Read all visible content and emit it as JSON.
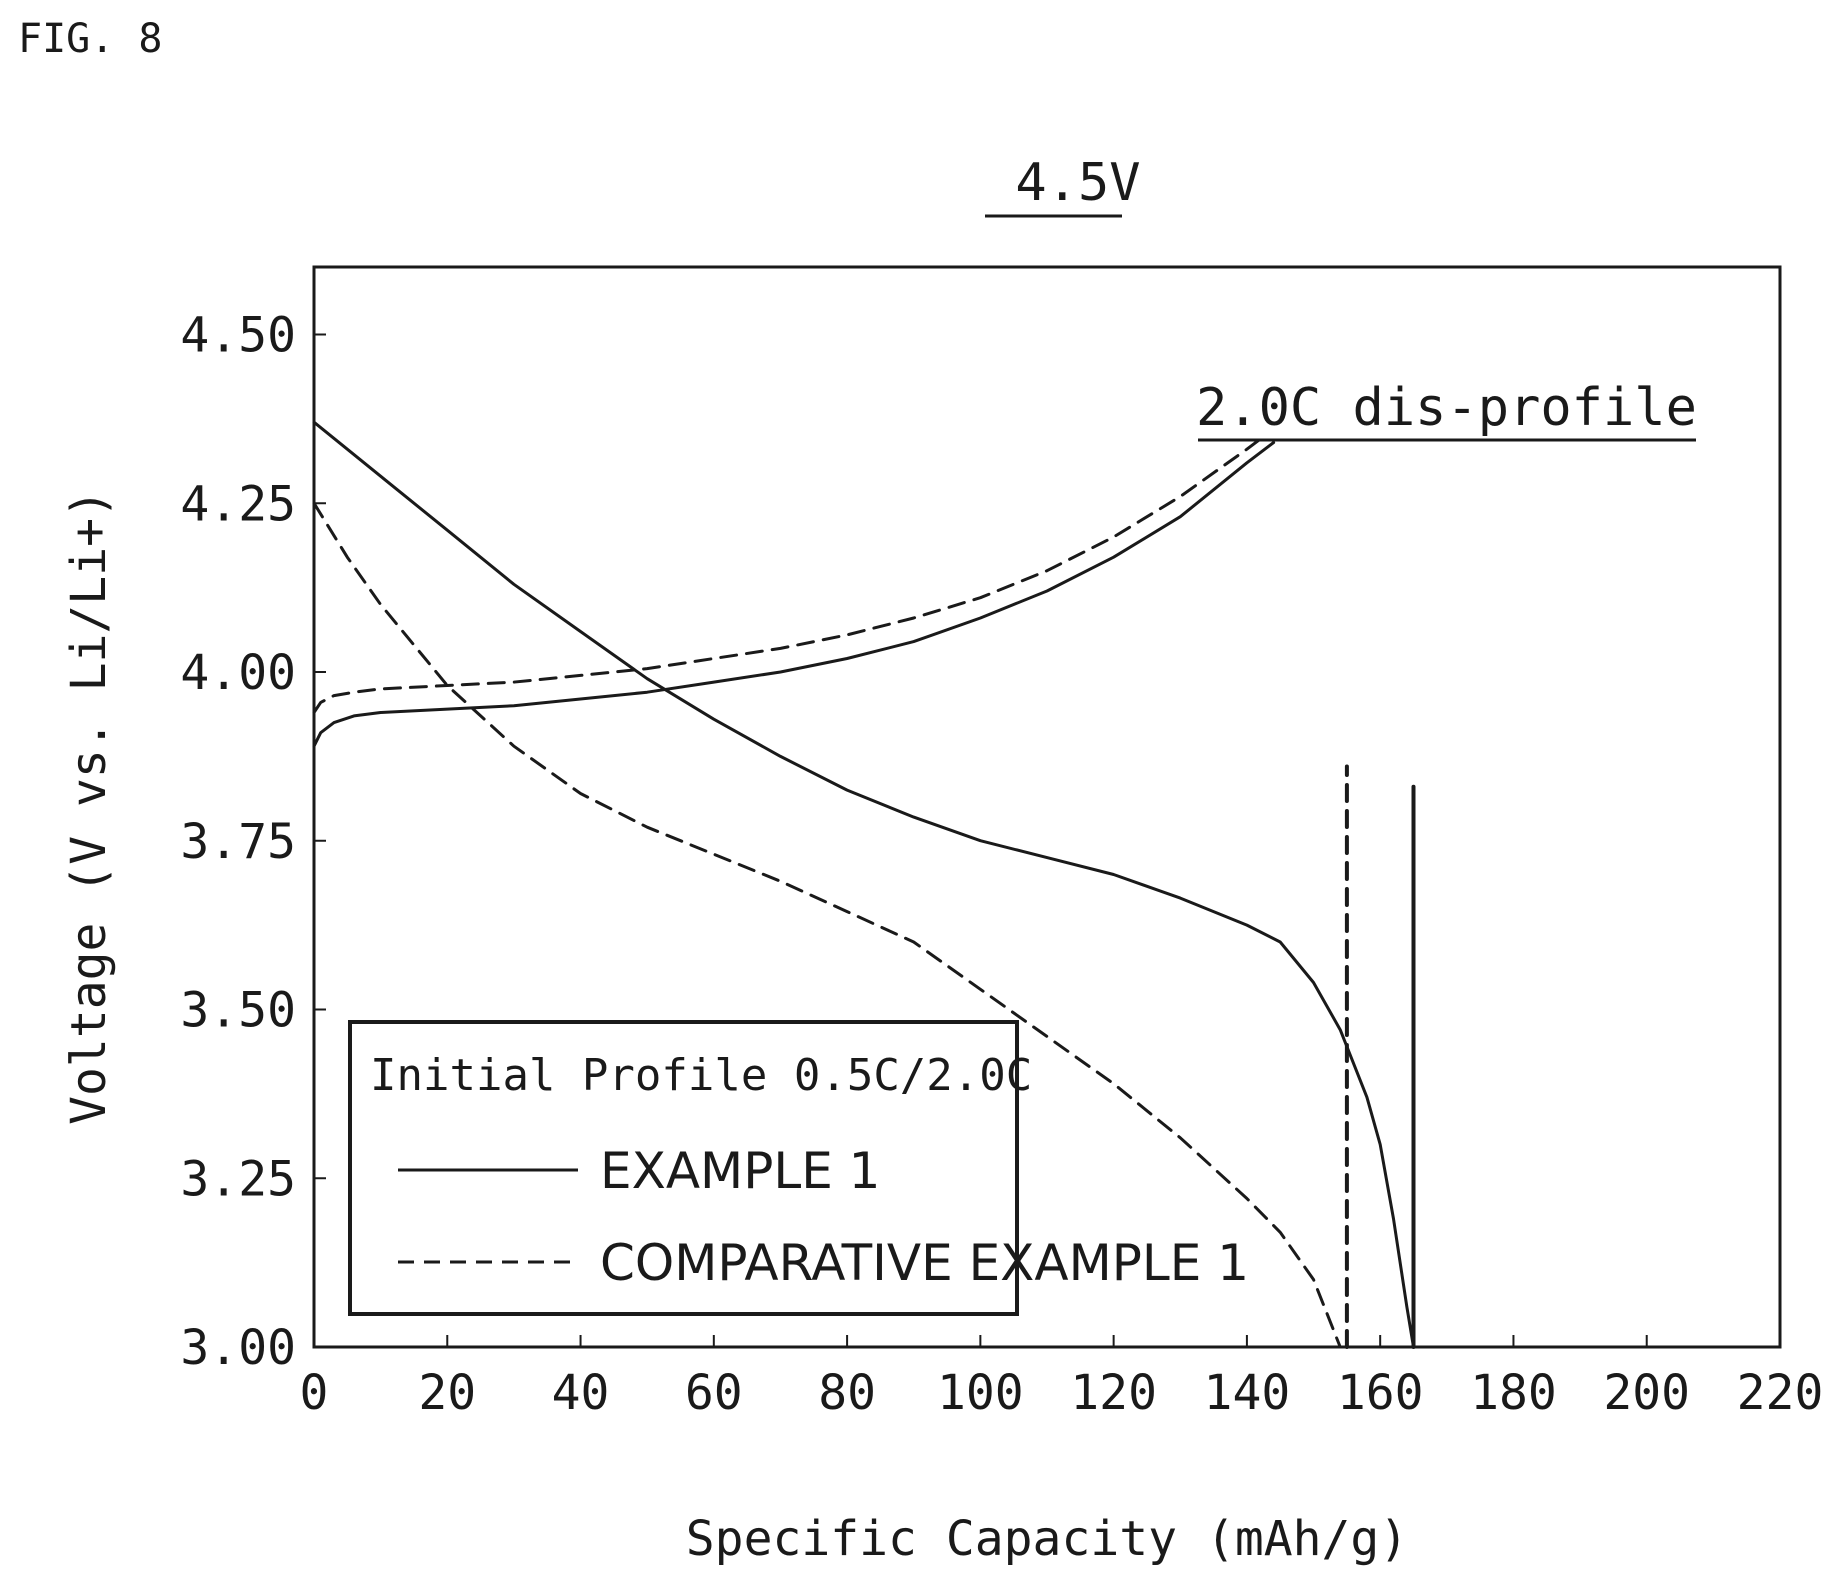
{
  "figure_label": "FIG. 8",
  "chart_data": {
    "type": "line",
    "title": "4.5V",
    "xlabel": "Specific Capacity (mAh/g)",
    "ylabel": "Voltage (V vs. Li/Li+)",
    "xlim": [
      0,
      220
    ],
    "ylim": [
      3.0,
      4.6
    ],
    "x_ticks": [
      "0",
      "20",
      "40",
      "60",
      "80",
      "100",
      "120",
      "140",
      "160",
      "180",
      "200",
      "220"
    ],
    "y_ticks": [
      "3.00",
      "3.25",
      "3.50",
      "3.75",
      "4.00",
      "4.25",
      "4.50"
    ],
    "grid": false,
    "legend": {
      "title": "Initial Profile 0.5C/2.0C",
      "placement": "bottom-left",
      "entries": [
        "EXAMPLE 1",
        "COMPARATIVE EXAMPLE 1"
      ]
    },
    "annotations": [
      {
        "text": "2.0C dis-profile"
      }
    ],
    "series": [
      {
        "name": "EXAMPLE 1",
        "style": "solid",
        "segment": "charge",
        "points": [
          [
            0,
            3.89
          ],
          [
            1,
            3.91
          ],
          [
            3,
            3.925
          ],
          [
            6,
            3.935
          ],
          [
            10,
            3.94
          ],
          [
            20,
            3.945
          ],
          [
            30,
            3.95
          ],
          [
            40,
            3.96
          ],
          [
            50,
            3.97
          ],
          [
            60,
            3.985
          ],
          [
            70,
            4.0
          ],
          [
            80,
            4.02
          ],
          [
            90,
            4.045
          ],
          [
            100,
            4.08
          ],
          [
            110,
            4.12
          ],
          [
            120,
            4.17
          ],
          [
            130,
            4.23
          ],
          [
            140,
            4.31
          ],
          [
            144,
            4.34
          ]
        ]
      },
      {
        "name": "EXAMPLE 1",
        "style": "solid",
        "segment": "discharge",
        "points": [
          [
            0,
            4.37
          ],
          [
            10,
            4.29
          ],
          [
            20,
            4.21
          ],
          [
            30,
            4.13
          ],
          [
            40,
            4.06
          ],
          [
            50,
            3.99
          ],
          [
            60,
            3.93
          ],
          [
            70,
            3.875
          ],
          [
            80,
            3.825
          ],
          [
            90,
            3.785
          ],
          [
            100,
            3.75
          ],
          [
            110,
            3.725
          ],
          [
            120,
            3.7
          ],
          [
            130,
            3.665
          ],
          [
            140,
            3.625
          ],
          [
            145,
            3.6
          ],
          [
            150,
            3.54
          ],
          [
            154,
            3.47
          ],
          [
            158,
            3.37
          ],
          [
            160,
            3.3
          ],
          [
            162,
            3.19
          ],
          [
            164,
            3.06
          ],
          [
            165,
            3.0
          ]
        ]
      },
      {
        "name": "EXAMPLE 1",
        "style": "solid",
        "segment": "cutoff",
        "points": [
          [
            165,
            3.0
          ],
          [
            165,
            3.83
          ]
        ]
      },
      {
        "name": "COMPARATIVE EXAMPLE 1",
        "style": "dashed",
        "segment": "charge",
        "points": [
          [
            0,
            3.94
          ],
          [
            1,
            3.955
          ],
          [
            3,
            3.965
          ],
          [
            6,
            3.97
          ],
          [
            10,
            3.975
          ],
          [
            20,
            3.98
          ],
          [
            30,
            3.985
          ],
          [
            40,
            3.995
          ],
          [
            50,
            4.005
          ],
          [
            60,
            4.02
          ],
          [
            70,
            4.035
          ],
          [
            80,
            4.055
          ],
          [
            90,
            4.08
          ],
          [
            100,
            4.11
          ],
          [
            110,
            4.15
          ],
          [
            120,
            4.2
          ],
          [
            130,
            4.26
          ],
          [
            140,
            4.33
          ],
          [
            142,
            4.345
          ]
        ]
      },
      {
        "name": "COMPARATIVE EXAMPLE 1",
        "style": "dashed",
        "segment": "discharge",
        "points": [
          [
            0,
            4.25
          ],
          [
            5,
            4.17
          ],
          [
            10,
            4.1
          ],
          [
            20,
            3.98
          ],
          [
            30,
            3.89
          ],
          [
            40,
            3.82
          ],
          [
            50,
            3.77
          ],
          [
            60,
            3.73
          ],
          [
            70,
            3.69
          ],
          [
            80,
            3.645
          ],
          [
            90,
            3.6
          ],
          [
            100,
            3.53
          ],
          [
            110,
            3.46
          ],
          [
            120,
            3.39
          ],
          [
            130,
            3.31
          ],
          [
            140,
            3.22
          ],
          [
            145,
            3.17
          ],
          [
            150,
            3.1
          ],
          [
            152,
            3.05
          ],
          [
            154,
            3.0
          ]
        ]
      },
      {
        "name": "COMPARATIVE EXAMPLE 1",
        "style": "dashed",
        "segment": "cutoff",
        "points": [
          [
            155,
            3.0
          ],
          [
            155,
            3.86
          ]
        ]
      }
    ]
  }
}
